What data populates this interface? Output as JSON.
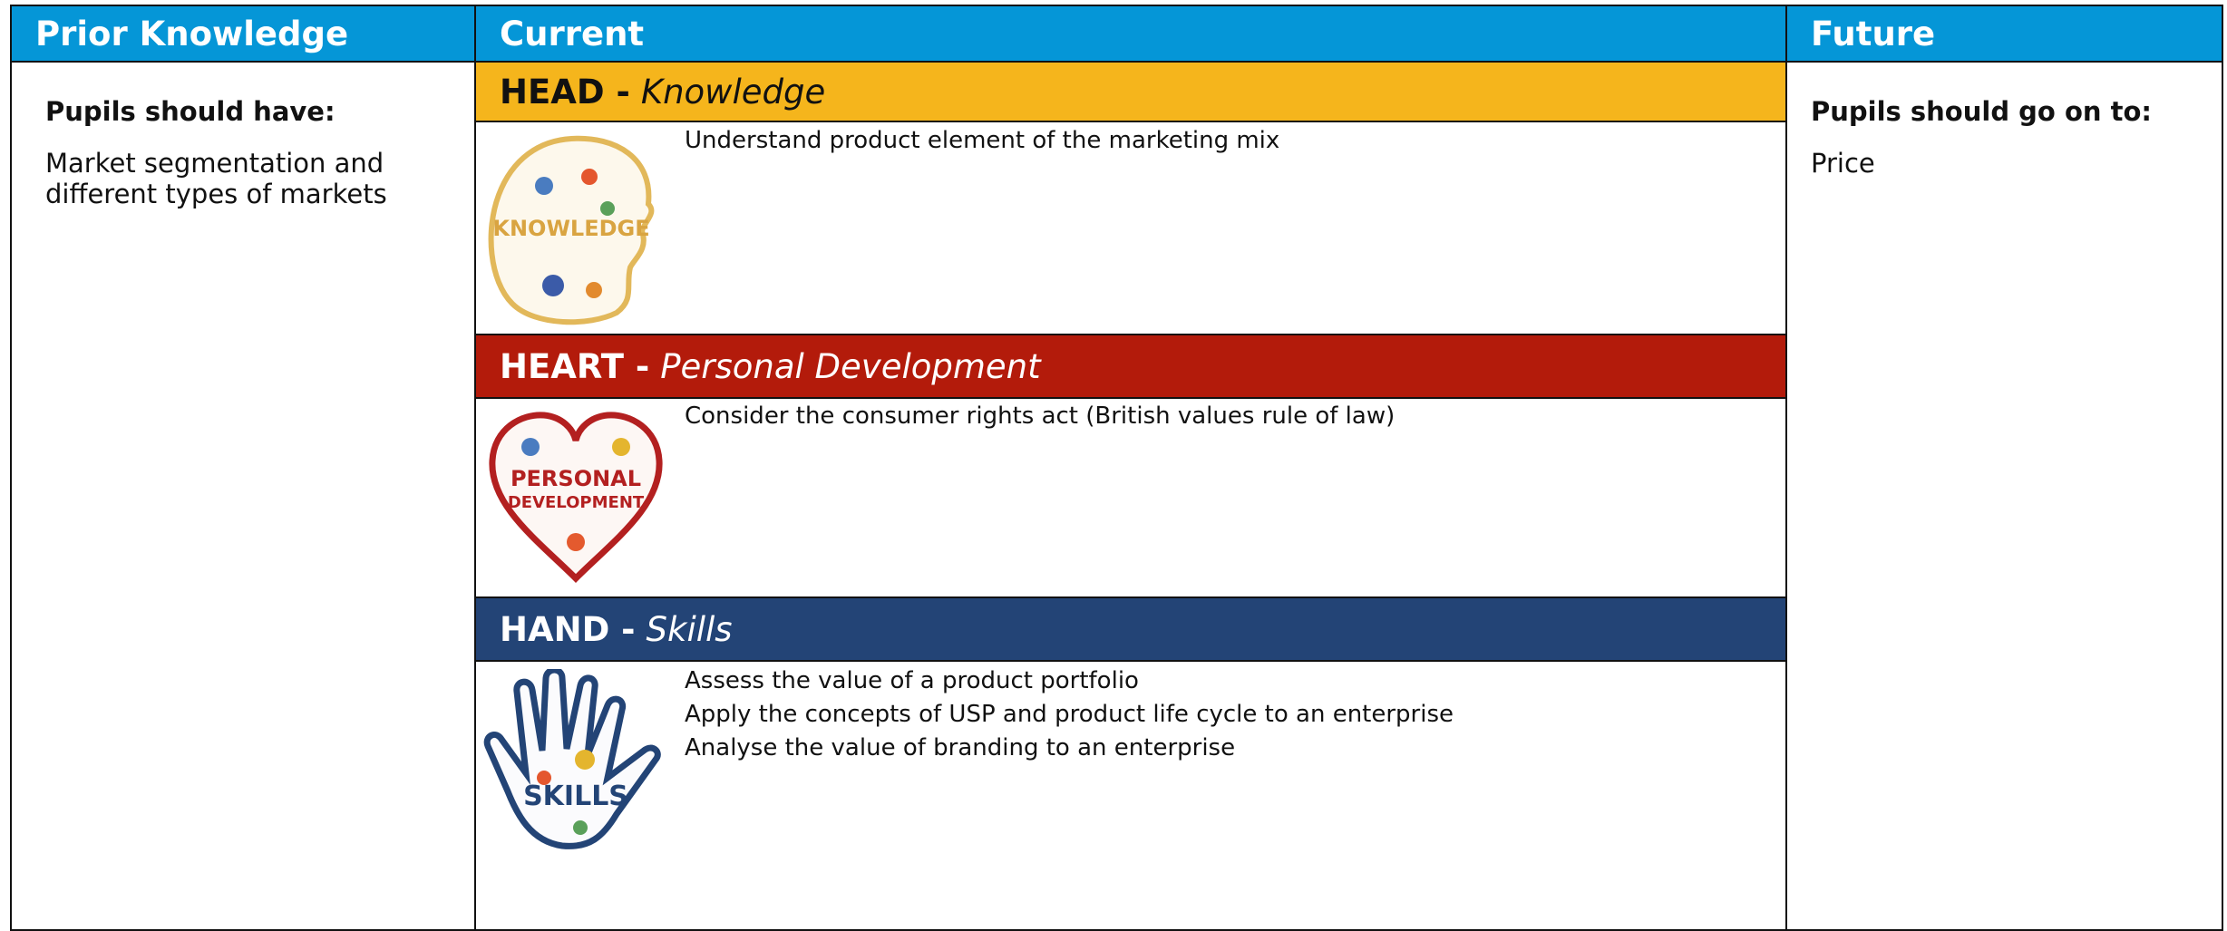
{
  "columns": {
    "prior": {
      "header": "Prior Knowledge",
      "subheading": "Pupils should have:",
      "items": [
        "Market segmentation and different types of markets"
      ]
    },
    "current": {
      "header": "Current",
      "sections": [
        {
          "title": "HEAD -",
          "subtitle": "Knowledge",
          "icon_lines": [
            "KNOWLEDGE"
          ],
          "items": [
            "Understand product element of the marketing mix"
          ]
        },
        {
          "title": "HEART -",
          "subtitle": "Personal Development",
          "icon_lines": [
            "PERSONAL",
            "DEVELOPMENT"
          ],
          "items": [
            "Consider the consumer rights act (British values rule of law)"
          ]
        },
        {
          "title": "HAND -",
          "subtitle": "Skills",
          "icon_lines": [
            "SKILLS"
          ],
          "items": [
            "Assess the value of a product portfolio",
            "Apply the concepts of USP and product life cycle to an enterprise",
            "Analyse the value of branding to an enterprise"
          ]
        }
      ]
    },
    "future": {
      "header": "Future",
      "subheading": "Pupils should go on to:",
      "items": [
        "Price"
      ]
    }
  }
}
